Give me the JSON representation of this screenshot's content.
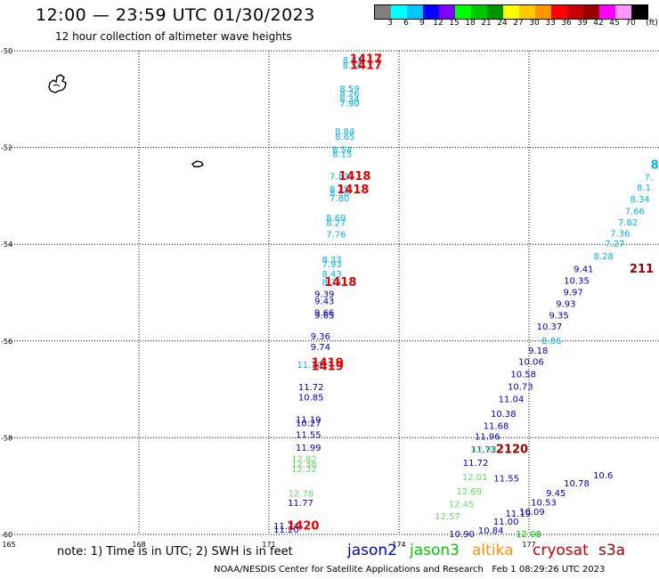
{
  "header": {
    "title": "12:00 — 23:59 UTC 01/30/2023",
    "subtitle": "12 hour collection of altimeter wave heights"
  },
  "colorbar": {
    "colors": [
      "#7f7f7f",
      "#00ffff",
      "#00c8ff",
      "#0000ff",
      "#7f00ff",
      "#00ff00",
      "#00c800",
      "#009600",
      "#ffff00",
      "#ffc800",
      "#ff9600",
      "#ff0000",
      "#c80000",
      "#960000",
      "#ff00ff",
      "#ff96ff",
      "#000000"
    ],
    "labels": [
      "3",
      "6",
      "9",
      "12",
      "15",
      "18",
      "21",
      "24",
      "27",
      "30",
      "33",
      "36",
      "39",
      "42",
      "45",
      "70",
      "(ft)"
    ]
  },
  "chart_data": {
    "type": "scatter",
    "x_range": [
      165,
      180
    ],
    "y_range": [
      -60,
      -50
    ],
    "x_ticks": [
      "165",
      "168",
      "171",
      "174",
      "177"
    ],
    "y_ticks": [
      "-50",
      "-52",
      "-54",
      "-56",
      "-58",
      "-60"
    ],
    "grid": true,
    "series": [
      {
        "name": "jason2",
        "color": "#0000c8",
        "points": [
          {
            "x": 172.28,
            "y": -55.04,
            "label": "9.39"
          },
          {
            "x": 172.28,
            "y": -55.18,
            "label": "9.43"
          },
          {
            "x": 172.28,
            "y": -55.42,
            "label": "9.66"
          },
          {
            "x": 172.28,
            "y": -55.48,
            "label": "9.65"
          },
          {
            "x": 172.19,
            "y": -55.91,
            "label": "9.36"
          },
          {
            "x": 172.19,
            "y": -56.13,
            "label": "9.74"
          },
          {
            "x": 171.97,
            "y": -56.96,
            "label": "11.72"
          },
          {
            "x": 171.97,
            "y": -57.17,
            "label": "10.85"
          },
          {
            "x": 171.91,
            "y": -57.63,
            "label": "11.19"
          },
          {
            "x": 171.91,
            "y": -57.71,
            "label": "10.27"
          },
          {
            "x": 171.91,
            "y": -57.95,
            "label": "11.55"
          },
          {
            "x": 171.91,
            "y": -58.21,
            "label": "11.99"
          },
          {
            "x": 171.73,
            "y": -59.36,
            "label": "11.77"
          },
          {
            "x": 171.4,
            "y": -59.83,
            "label": "11.74"
          },
          {
            "x": 171.4,
            "y": -59.91,
            "label": "11.20"
          },
          {
            "x": 175.45,
            "y": -60.0,
            "label": "10.90"
          },
          {
            "x": 176.12,
            "y": -59.93,
            "label": "10.84"
          },
          {
            "x": 176.47,
            "y": -59.74,
            "label": "11.00"
          },
          {
            "x": 176.75,
            "y": -59.58,
            "label": "11.19"
          },
          {
            "x": 176.48,
            "y": -58.85,
            "label": "11.55"
          },
          {
            "x": 175.77,
            "y": -58.53,
            "label": "11.72"
          },
          {
            "x": 175.95,
            "y": -58.25,
            "label": "11.73"
          },
          {
            "x": 176.04,
            "y": -57.98,
            "label": "11.96"
          },
          {
            "x": 176.24,
            "y": -57.76,
            "label": "11.68"
          },
          {
            "x": 176.41,
            "y": -57.51,
            "label": "10.38"
          },
          {
            "x": 176.59,
            "y": -57.21,
            "label": "11.04"
          },
          {
            "x": 176.8,
            "y": -56.95,
            "label": "10.73"
          },
          {
            "x": 176.87,
            "y": -56.69,
            "label": "10.58"
          },
          {
            "x": 177.05,
            "y": -56.44,
            "label": "10.06"
          },
          {
            "x": 177.21,
            "y": -56.21,
            "label": "9.18"
          },
          {
            "x": 177.47,
            "y": -55.71,
            "label": "10.37"
          },
          {
            "x": 177.69,
            "y": -55.48,
            "label": "9.35"
          },
          {
            "x": 177.85,
            "y": -55.24,
            "label": "9.93"
          },
          {
            "x": 178.02,
            "y": -55.0,
            "label": "9.97"
          },
          {
            "x": 178.1,
            "y": -54.76,
            "label": "10.35"
          },
          {
            "x": 178.26,
            "y": -54.52,
            "label": "9.41"
          },
          {
            "x": 177.07,
            "y": -59.54,
            "label": "10.09"
          },
          {
            "x": 177.34,
            "y": -59.35,
            "label": "10.53"
          },
          {
            "x": 177.62,
            "y": -59.15,
            "label": "9.45"
          },
          {
            "x": 178.1,
            "y": -58.95,
            "label": "10.78"
          },
          {
            "x": 178.71,
            "y": -58.78,
            "label": "10.6"
          }
        ]
      },
      {
        "name": "jason3",
        "color": "#00c800",
        "points": [
          {
            "x": 176.99,
            "y": -60.0,
            "label": "12.08"
          }
        ]
      },
      {
        "name": "jason3 (light)",
        "color": "#64dc64",
        "points": [
          {
            "x": 171.81,
            "y": -58.44,
            "label": "12.82"
          },
          {
            "x": 171.81,
            "y": -58.55,
            "label": "12.38"
          },
          {
            "x": 171.81,
            "y": -58.66,
            "label": "12.32"
          },
          {
            "x": 171.74,
            "y": -59.16,
            "label": "12.78"
          },
          {
            "x": 175.97,
            "y": -58.25,
            "label": "12.94"
          },
          {
            "x": 175.75,
            "y": -58.82,
            "label": "12.01"
          },
          {
            "x": 175.62,
            "y": -59.12,
            "label": "12.69"
          },
          {
            "x": 175.44,
            "y": -59.38,
            "label": "12.45"
          },
          {
            "x": 175.12,
            "y": -59.63,
            "label": "12.57"
          }
        ]
      },
      {
        "name": "altika",
        "color": "#00b4f0",
        "points": [
          {
            "x": 172.93,
            "y": -50.2,
            "label": "8.83"
          },
          {
            "x": 172.93,
            "y": -50.31,
            "label": "8.56"
          },
          {
            "x": 172.86,
            "y": -50.79,
            "label": "8.59"
          },
          {
            "x": 172.86,
            "y": -50.89,
            "label": "8.26"
          },
          {
            "x": 172.86,
            "y": -51.0,
            "label": "8.34"
          },
          {
            "x": 172.86,
            "y": -51.1,
            "label": "7.90"
          },
          {
            "x": 172.75,
            "y": -51.68,
            "label": "8.84"
          },
          {
            "x": 172.75,
            "y": -51.79,
            "label": "8.65"
          },
          {
            "x": 172.69,
            "y": -52.05,
            "label": "8.54"
          },
          {
            "x": 172.69,
            "y": -52.15,
            "label": "8.15"
          },
          {
            "x": 172.63,
            "y": -52.61,
            "label": "7.81"
          },
          {
            "x": 172.63,
            "y": -52.86,
            "label": "8.25"
          },
          {
            "x": 172.63,
            "y": -52.95,
            "label": "8.18"
          },
          {
            "x": 172.63,
            "y": -53.06,
            "label": "7.80"
          },
          {
            "x": 172.55,
            "y": -53.46,
            "label": "8.69"
          },
          {
            "x": 172.55,
            "y": -53.56,
            "label": "8.27"
          },
          {
            "x": 172.55,
            "y": -53.8,
            "label": "7.76"
          },
          {
            "x": 172.45,
            "y": -54.32,
            "label": "8.33"
          },
          {
            "x": 172.45,
            "y": -54.42,
            "label": "7.93"
          },
          {
            "x": 172.45,
            "y": -54.62,
            "label": "8.43"
          },
          {
            "x": 172.45,
            "y": -54.8,
            "label": "8.73"
          },
          {
            "x": 171.94,
            "y": -56.5,
            "label": "11.10"
          },
          {
            "x": 177.52,
            "y": -56.0,
            "label": "8.86"
          },
          {
            "x": 178.72,
            "y": -54.25,
            "label": "8.28"
          },
          {
            "x": 178.98,
            "y": -54.0,
            "label": "7.27"
          },
          {
            "x": 179.1,
            "y": -53.78,
            "label": "7.36"
          },
          {
            "x": 179.28,
            "y": -53.55,
            "label": "7.82"
          },
          {
            "x": 179.44,
            "y": -53.32,
            "label": "7.66"
          },
          {
            "x": 179.56,
            "y": -53.08,
            "label": "8.34"
          },
          {
            "x": 179.65,
            "y": -52.84,
            "label": "8.1"
          },
          {
            "x": 179.76,
            "y": -52.62,
            "label": "7."
          },
          {
            "x": 179.9,
            "y": -52.38,
            "label": "8"
          }
        ]
      },
      {
        "name": "cryosat",
        "color": "#e60000",
        "points": [
          {
            "x": 173.24,
            "y": -50.18,
            "label": "1417"
          },
          {
            "x": 173.24,
            "y": -50.31,
            "label": "1417"
          },
          {
            "x": 172.98,
            "y": -52.61,
            "label": "1418"
          },
          {
            "x": 172.94,
            "y": -52.88,
            "label": "1418"
          },
          {
            "x": 172.65,
            "y": -54.8,
            "label": "1418"
          },
          {
            "x": 172.35,
            "y": -56.46,
            "label": "1419"
          },
          {
            "x": 172.35,
            "y": -56.54,
            "label": "1419"
          },
          {
            "x": 171.79,
            "y": -59.83,
            "label": "1420"
          }
        ]
      },
      {
        "name": "s3a",
        "color": "#960000",
        "points": [
          {
            "x": 176.61,
            "y": -58.25,
            "label": "2120"
          },
          {
            "x": 179.6,
            "y": -54.52,
            "label": "211"
          }
        ]
      }
    ]
  },
  "legend": {
    "note": "note: 1) Time is in UTC; 2) SWH is in feet",
    "satellites": [
      {
        "name": "jason2",
        "color": "#0000c8"
      },
      {
        "name": "jason3",
        "color": "#00c800"
      },
      {
        "name": "altika",
        "color": "#ff9600"
      },
      {
        "name": "cryosat",
        "color": "#c80000"
      },
      {
        "name": "s3a",
        "color": "#960000"
      }
    ]
  },
  "footer": {
    "credit": "NOAA/NESDIS Center for Satellite Applications and Research",
    "timestamp": "Feb  1 08:29:26 UTC 2023"
  }
}
